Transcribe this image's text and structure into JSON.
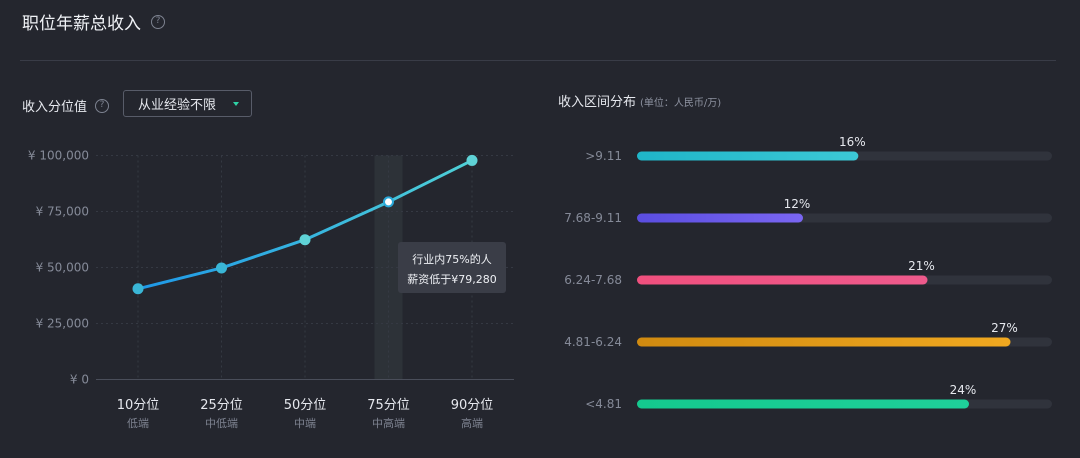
{
  "header": {
    "title": "职位年薪总收入",
    "help_icon": "question-circle-icon",
    "help_text": "?"
  },
  "left_panel": {
    "label": "收入分位值",
    "help_text": "?",
    "select": {
      "value": "从业经验不限",
      "icon": "caret-down-icon"
    }
  },
  "right_panel": {
    "title": "收入区间分布",
    "unit": "(单位：人民币/万)"
  },
  "tooltip": {
    "line1": "行业内75%的人",
    "line2": "薪资低于¥79,280"
  },
  "colors": {
    "line_start": "#1e98e8",
    "line_end": "#4fd0d6",
    "highlight_band": "#2d3238",
    "bars": [
      "#3cc9d6",
      "#7a66f2",
      "#ee5a8c",
      "#f0a820",
      "#1fd09a"
    ],
    "bars_start": [
      "#1fb5c8",
      "#5a4de0",
      "#f0507e",
      "#d08a10",
      "#14c98e"
    ]
  },
  "chart_data": [
    {
      "type": "line",
      "categories": [
        "10分位",
        "25分位",
        "50分位",
        "75分位",
        "90分位"
      ],
      "sublabels": [
        "低端",
        "中低端",
        "中端",
        "中高端",
        "高端"
      ],
      "values": [
        40500,
        49800,
        62400,
        79280,
        97800
      ],
      "ylim": [
        0,
        100000
      ],
      "yticks": [
        0,
        25000,
        50000,
        75000,
        100000
      ],
      "ytick_labels": [
        "¥ 0",
        "¥ 25,000",
        "¥ 50,000",
        "¥ 75,000",
        "¥ 100,000"
      ],
      "highlight_index": 3
    },
    {
      "type": "bar",
      "orientation": "horizontal",
      "categories": [
        ">9.11",
        "7.68-9.11",
        "6.24-7.68",
        "4.81-6.24",
        "<4.81"
      ],
      "values": [
        16,
        12,
        21,
        27,
        24
      ],
      "value_labels": [
        "16%",
        "12%",
        "21%",
        "27%",
        "24%"
      ],
      "xlim": [
        0,
        30
      ]
    }
  ]
}
